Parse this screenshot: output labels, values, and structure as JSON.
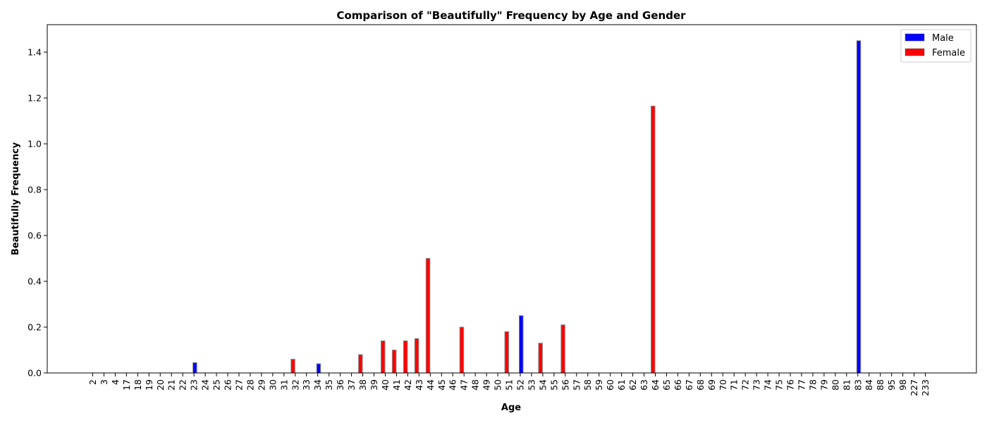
{
  "chart_data": {
    "type": "bar",
    "title": "Comparison of \"Beautifully\" Frequency by Age and Gender",
    "xlabel": "Age",
    "ylabel": "Beautifully Frequency",
    "ylim": [
      0,
      1.52
    ],
    "yticks": [
      "0.0",
      "0.2",
      "0.4",
      "0.6",
      "0.8",
      "1.0",
      "1.2",
      "1.4"
    ],
    "grid": false,
    "legend_position": "top-right",
    "categories": [
      "2",
      "3",
      "4",
      "17",
      "18",
      "19",
      "20",
      "21",
      "22",
      "23",
      "24",
      "25",
      "26",
      "27",
      "28",
      "29",
      "30",
      "31",
      "32",
      "33",
      "34",
      "35",
      "36",
      "37",
      "38",
      "39",
      "40",
      "41",
      "42",
      "43",
      "44",
      "45",
      "46",
      "47",
      "48",
      "49",
      "50",
      "51",
      "52",
      "53",
      "54",
      "55",
      "56",
      "57",
      "58",
      "59",
      "60",
      "61",
      "62",
      "63",
      "64",
      "65",
      "66",
      "67",
      "68",
      "69",
      "70",
      "71",
      "72",
      "73",
      "74",
      "75",
      "76",
      "77",
      "78",
      "79",
      "80",
      "81",
      "83",
      "84",
      "88",
      "95",
      "98",
      "227",
      "233"
    ],
    "series": [
      {
        "name": "Male",
        "color": "#0000ff",
        "points": [
          {
            "category": "23",
            "value": 0.045
          },
          {
            "category": "34",
            "value": 0.04
          },
          {
            "category": "52",
            "value": 0.25
          },
          {
            "category": "83",
            "value": 1.45
          }
        ]
      },
      {
        "name": "Female",
        "color": "#ff0000",
        "points": [
          {
            "category": "32",
            "value": 0.06
          },
          {
            "category": "38",
            "value": 0.08
          },
          {
            "category": "40",
            "value": 0.14
          },
          {
            "category": "41",
            "value": 0.1
          },
          {
            "category": "42",
            "value": 0.14
          },
          {
            "category": "43",
            "value": 0.15
          },
          {
            "category": "44",
            "value": 0.5
          },
          {
            "category": "47",
            "value": 0.2
          },
          {
            "category": "51",
            "value": 0.18
          },
          {
            "category": "54",
            "value": 0.13
          },
          {
            "category": "56",
            "value": 0.21
          },
          {
            "category": "64",
            "value": 1.165
          }
        ]
      }
    ]
  }
}
